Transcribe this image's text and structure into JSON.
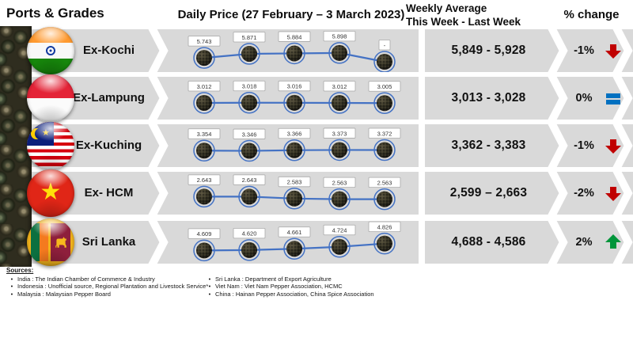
{
  "header": {
    "ports_grades": "Ports & Grades",
    "daily_price": "Daily Price (27 February – 3 March 2023)",
    "weekly_avg_line1": "Weekly Average",
    "weekly_avg_line2": "This Week - Last Week",
    "pct_change": "% change"
  },
  "rows": [
    {
      "port": "Ex-Kochi",
      "flag": "india",
      "daily_labels": [
        "5.743",
        "5.871",
        "5.884",
        "5.898",
        "-"
      ],
      "weekly_average": "5,849 - 5,928",
      "pct_change": "-1%",
      "trend": "down"
    },
    {
      "port": "Ex-Lampung",
      "flag": "indonesia",
      "daily_labels": [
        "3.012",
        "3.018",
        "3.016",
        "3.012",
        "3.005"
      ],
      "weekly_average": "3,013 - 3,028",
      "pct_change": "0%",
      "trend": "flat"
    },
    {
      "port": "Ex-Kuching",
      "flag": "malaysia",
      "daily_labels": [
        "3.354",
        "3.346",
        "3.366",
        "3.373",
        "3.372"
      ],
      "weekly_average": "3,362 - 3,383",
      "pct_change": "-1%",
      "trend": "down"
    },
    {
      "port": "Ex- HCM",
      "flag": "vietnam",
      "daily_labels": [
        "2.643",
        "2.643",
        "2.583",
        "2.563",
        "2.563"
      ],
      "weekly_average": "2,599 – 2,663",
      "pct_change": "-2%",
      "trend": "down"
    },
    {
      "port": "Sri Lanka",
      "flag": "srilanka",
      "daily_labels": [
        "4.609",
        "4.620",
        "4.661",
        "4.724",
        "4.826"
      ],
      "weekly_average": "4,688 - 4,586",
      "pct_change": "2%",
      "trend": "up"
    }
  ],
  "chart_data": {
    "type": "line",
    "title": "Daily Price (27 February – 3 March 2023)",
    "x": [
      1,
      2,
      3,
      4,
      5
    ],
    "points_per_series": 5,
    "series": [
      {
        "name": "Ex-Kochi",
        "values": [
          5743,
          5871,
          5884,
          5898,
          null
        ]
      },
      {
        "name": "Ex-Lampung",
        "values": [
          3012,
          3018,
          3016,
          3012,
          3005
        ]
      },
      {
        "name": "Ex-Kuching",
        "values": [
          3354,
          3346,
          3366,
          3373,
          3372
        ]
      },
      {
        "name": "Ex- HCM",
        "values": [
          2643,
          2643,
          2583,
          2563,
          2563
        ]
      },
      {
        "name": "Sri Lanka",
        "values": [
          4609,
          4620,
          4661,
          4724,
          4826
        ]
      }
    ],
    "marker_style": "peppercorn with blue ring",
    "grid": false,
    "legend_position": "none"
  },
  "icons": {
    "down": "down-arrow-icon",
    "up": "up-arrow-icon",
    "flat": "equals-icon",
    "flags": [
      "india-flag-icon",
      "indonesia-flag-icon",
      "malaysia-flag-icon",
      "vietnam-flag-icon",
      "sri-lanka-flag-icon"
    ]
  },
  "colors": {
    "band_grey": "#d9d9d9",
    "line_blue": "#4472c4",
    "down_red": "#c00000",
    "up_green": "#00953a",
    "flat_blue": "#0070c0"
  },
  "sources": {
    "title": "Sources:",
    "bullet": "•",
    "left": [
      "India : The Indian Chamber of Commerce & Industry",
      "Indonesia : Unofficial source, Regional Plantation and Livestock Service*",
      "Malaysia : Malaysian Pepper Board"
    ],
    "right": [
      "Sri Lanka : Department of Export Agriculture",
      "Viet Nam : Viet Nam Pepper Association, HCMC",
      "China : Hainan Pepper Association, China Spice Association"
    ]
  }
}
